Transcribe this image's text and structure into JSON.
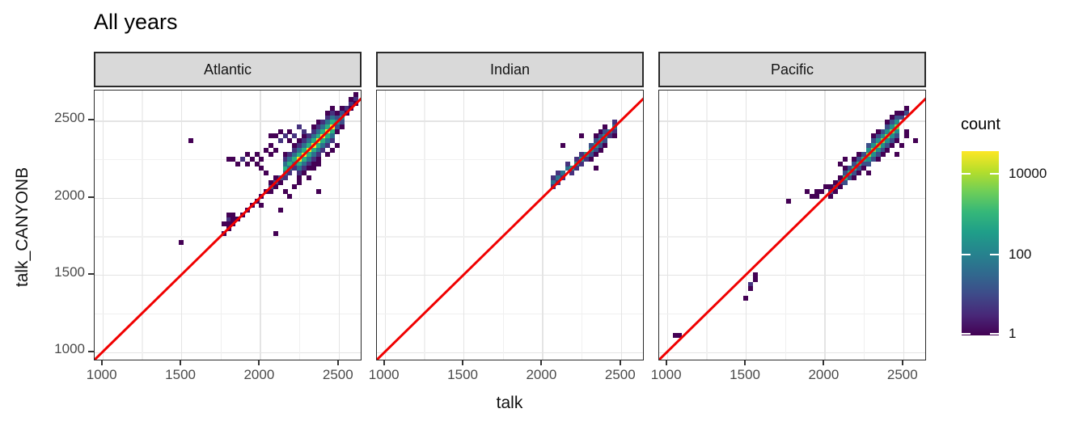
{
  "title": "All years",
  "axes": {
    "x_title": "talk",
    "y_title": "talk_CANYONB",
    "x_tick_labels": [
      "1000",
      "1500",
      "2000",
      "2500"
    ],
    "y_tick_labels": [
      "2500",
      "2000",
      "1500",
      "1000"
    ]
  },
  "legend": {
    "title": "count",
    "tick_labels": [
      "10000",
      "100",
      "1"
    ]
  },
  "colors": {
    "reference_line": "#f00000",
    "strip_background": "#d9d9d9",
    "panel_border": "#2a2a2a",
    "grid_major": "#e4e4e4",
    "grid_minor": "#f0f0f0",
    "tick_text": "#4a4a4a",
    "viridis_palette": [
      "#440154",
      "#46327e",
      "#3c4f8a",
      "#2c718e",
      "#21918c",
      "#2ab07f",
      "#86d549",
      "#fde725"
    ]
  },
  "chart_data": {
    "type": "heatmap",
    "subtype": "bin2d-scatter",
    "title": "All years",
    "xlabel": "talk",
    "ylabel": "talk_CANYONB",
    "x_range": [
      950,
      2650
    ],
    "y_range": [
      940,
      2695
    ],
    "x_tick_values": [
      1000,
      1500,
      2000,
      2500
    ],
    "y_tick_values": [
      2500,
      2000,
      1500,
      1000
    ],
    "grid_step_minor": 250,
    "bin_size_units": 30,
    "reference_line": "y = x",
    "color_scale": {
      "label": "count",
      "scale": "log10",
      "ticks": [
        1,
        100,
        10000
      ],
      "palette_name": "viridis"
    },
    "level_count_approx": [
      1,
      4,
      15,
      60,
      250,
      1000,
      4000,
      15000
    ],
    "panels": [
      {
        "label": "Atlantic",
        "band_segments": [
          {
            "x0": 1760,
            "x1": 2070,
            "profile": [
              0
            ]
          },
          {
            "x0": 2070,
            "x1": 2170,
            "profile": [
              2,
              0
            ]
          },
          {
            "x0": 2170,
            "x1": 2250,
            "profile": [
              5,
              3,
              1,
              0
            ]
          },
          {
            "x0": 2250,
            "x1": 2460,
            "profile": [
              7,
              5,
              3,
              1,
              0
            ]
          },
          {
            "x0": 2460,
            "x1": 2530,
            "profile": [
              4,
              2,
              0
            ]
          },
          {
            "x0": 2530,
            "x1": 2620,
            "profile": [
              1,
              0
            ]
          }
        ],
        "bins": [
          [
            1550,
            2370,
            0
          ],
          [
            1500,
            1705,
            0
          ],
          [
            2100,
            1760,
            0
          ],
          [
            2010,
            1940,
            0
          ],
          [
            2120,
            1920,
            0
          ],
          [
            2170,
            2040,
            0
          ],
          [
            2200,
            2010,
            0
          ],
          [
            2365,
            2035,
            0
          ],
          [
            2210,
            2060,
            0
          ],
          [
            1930,
            2230,
            0
          ],
          [
            1960,
            2260,
            0
          ],
          [
            1990,
            2290,
            0
          ],
          [
            1990,
            2230,
            0
          ],
          [
            2020,
            2260,
            0
          ],
          [
            2050,
            2320,
            0
          ],
          [
            2080,
            2290,
            0
          ],
          [
            2080,
            2350,
            0
          ],
          [
            2110,
            2320,
            0
          ],
          [
            1900,
            2260,
            1
          ],
          [
            1870,
            2230,
            0
          ],
          [
            1840,
            2260,
            0
          ],
          [
            1810,
            2260,
            0
          ],
          [
            1930,
            2290,
            0
          ],
          [
            2020,
            2200,
            0
          ],
          [
            2050,
            2170,
            0
          ],
          [
            2140,
            2380,
            1
          ],
          [
            2170,
            2410,
            1
          ],
          [
            2200,
            2380,
            0
          ],
          [
            2230,
            2410,
            1
          ],
          [
            2140,
            2420,
            0
          ],
          [
            2080,
            2390,
            0
          ],
          [
            2110,
            2390,
            0
          ],
          [
            2200,
            2440,
            0
          ],
          [
            2260,
            2450,
            1
          ],
          [
            2290,
            2420,
            1
          ],
          [
            2290,
            2160,
            0
          ],
          [
            2320,
            2130,
            0
          ],
          [
            2350,
            2190,
            0
          ],
          [
            2380,
            2220,
            0
          ],
          [
            2440,
            2280,
            0
          ],
          [
            2470,
            2320,
            0
          ],
          [
            2500,
            2350,
            0
          ],
          [
            2260,
            2100,
            0
          ],
          [
            1790,
            1820,
            0
          ],
          [
            1790,
            1850,
            1
          ],
          [
            1790,
            1880,
            0
          ],
          [
            1820,
            1850,
            0
          ],
          [
            1820,
            1900,
            0
          ],
          [
            1760,
            1840,
            0
          ]
        ]
      },
      {
        "label": "Indian",
        "band_segments": [
          {
            "x0": 2080,
            "x1": 2180,
            "profile": [
              3,
              1
            ]
          },
          {
            "x0": 2180,
            "x1": 2300,
            "profile": [
              4,
              1
            ]
          },
          {
            "x0": 2300,
            "x1": 2400,
            "profile": [
              4,
              2,
              0
            ]
          },
          {
            "x0": 2400,
            "x1": 2460,
            "profile": [
              3,
              1
            ]
          }
        ],
        "bins": [
          [
            2130,
            2340,
            0
          ],
          [
            2240,
            2400,
            0
          ],
          [
            2060,
            2100,
            0
          ],
          [
            2330,
            2185,
            0
          ],
          [
            2470,
            2400,
            0
          ]
        ]
      },
      {
        "label": "Pacific",
        "band_segments": [
          {
            "x0": 2040,
            "x1": 2130,
            "profile": [
              2,
              0
            ]
          },
          {
            "x0": 2130,
            "x1": 2280,
            "profile": [
              5,
              2,
              0
            ]
          },
          {
            "x0": 2280,
            "x1": 2470,
            "profile": [
              6,
              4,
              2,
              0
            ]
          },
          {
            "x0": 2470,
            "x1": 2530,
            "profile": [
              2,
              0
            ]
          }
        ],
        "bins": [
          [
            2590,
            2380,
            0
          ],
          [
            1770,
            1980,
            0
          ],
          [
            1905,
            2005,
            0
          ],
          [
            1935,
            2035,
            0
          ],
          [
            1955,
            2005,
            0
          ],
          [
            1985,
            2035,
            0
          ],
          [
            2010,
            2065,
            0
          ],
          [
            1875,
            2035,
            0
          ],
          [
            1040,
            1120,
            0
          ],
          [
            1090,
            1120,
            0
          ],
          [
            1490,
            1340,
            0
          ],
          [
            1540,
            1450,
            1
          ],
          [
            1545,
            1485,
            0
          ],
          [
            1570,
            1480,
            0
          ],
          [
            1520,
            1420,
            0
          ],
          [
            2500,
            2340,
            0
          ],
          [
            2530,
            2390,
            0
          ],
          [
            2470,
            2290,
            0
          ],
          [
            2505,
            2420,
            0
          ],
          [
            2240,
            2185,
            0
          ],
          [
            2280,
            2160,
            0
          ],
          [
            2200,
            2130,
            0
          ],
          [
            2110,
            2210,
            0
          ],
          [
            2140,
            2240,
            0
          ]
        ]
      }
    ]
  }
}
